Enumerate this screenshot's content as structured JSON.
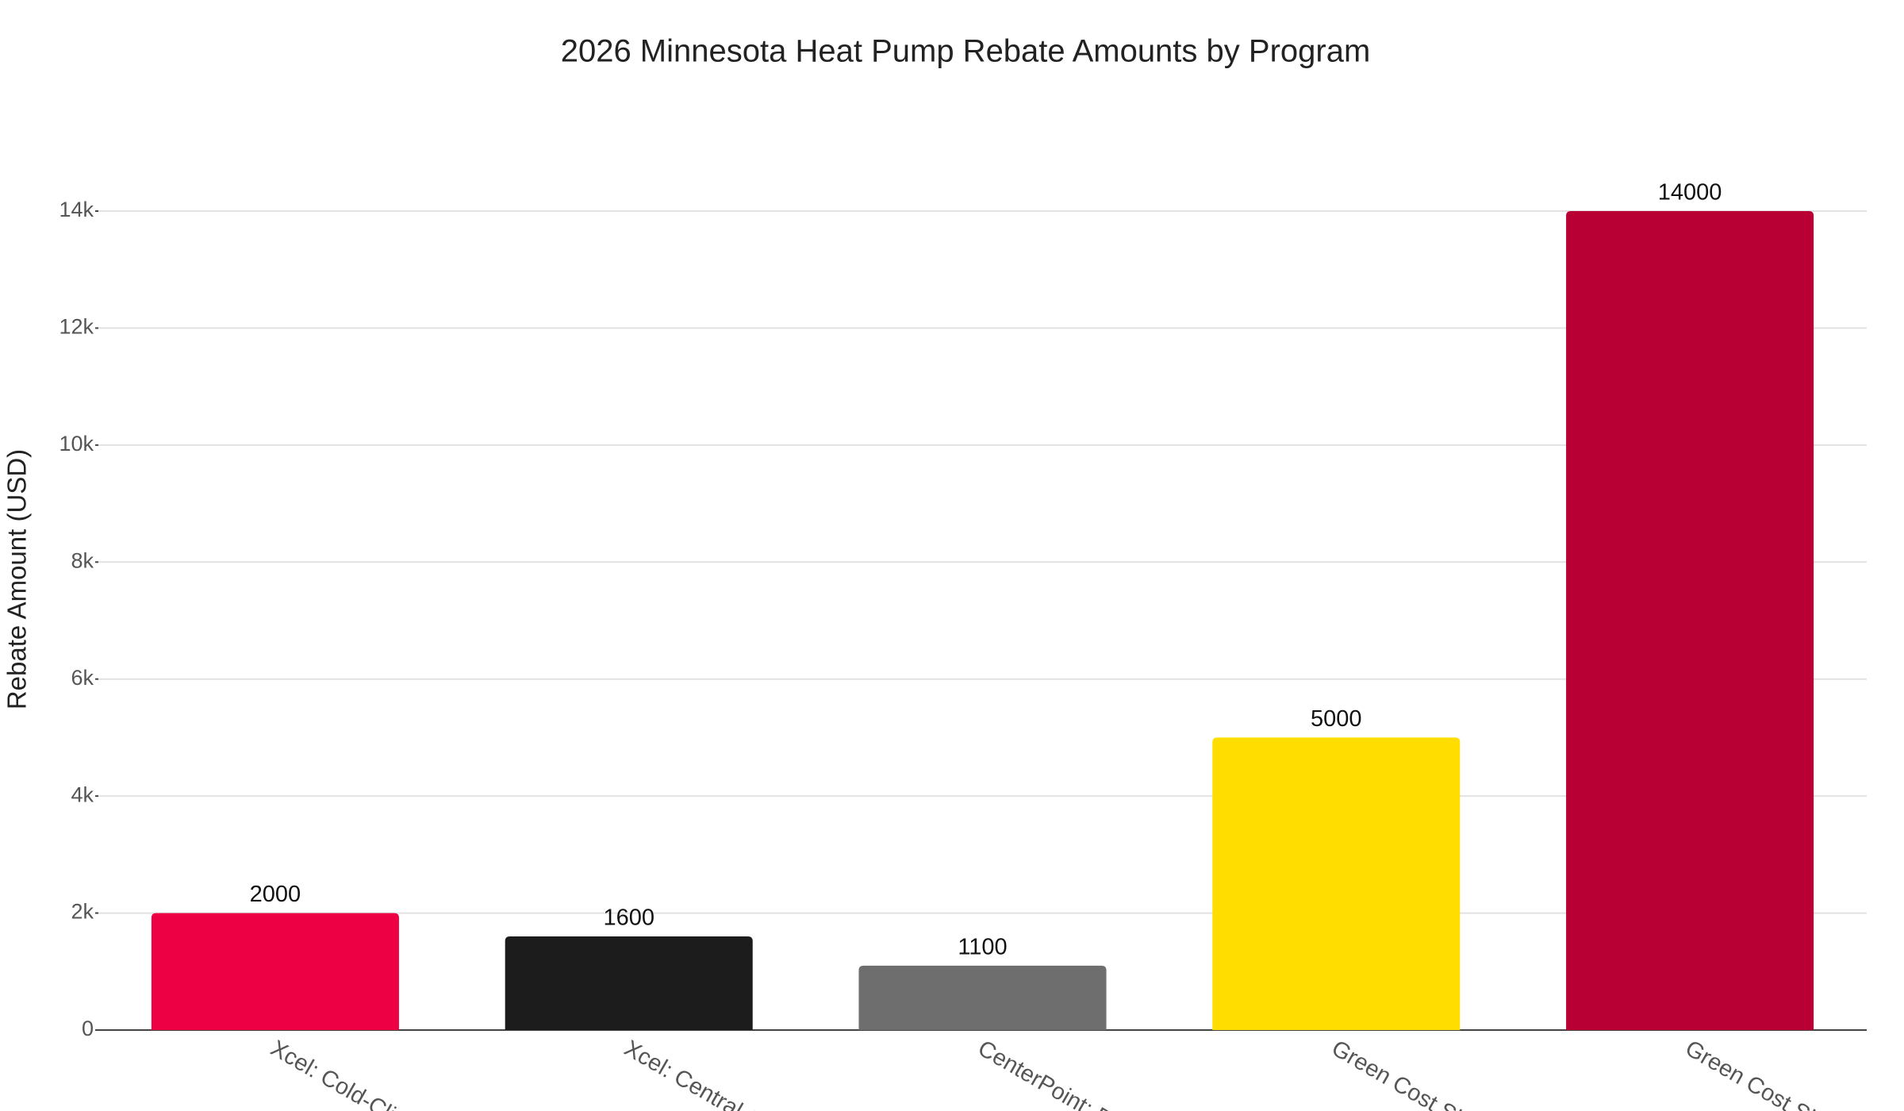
{
  "chart_data": {
    "type": "bar",
    "title": "2026 Minnesota Heat Pump Rebate Amounts by Program",
    "y_label": "Rebate Amount (USD)",
    "categories": [
      "Xcel: Cold-Clim",
      "Xcel: Central AS",
      "CenterPoint: D",
      "Green Cost Sha",
      "Green Cost Sha"
    ],
    "values": [
      2000,
      1600,
      1100,
      5000,
      14000
    ],
    "colors": [
      "#ee0044",
      "#1c1c1c",
      "#6e6e6e",
      "#ffdd00",
      "#b80035"
    ],
    "ylim": [
      0,
      14000
    ],
    "yticks": [
      0,
      {
        "value": 2000,
        "label": "2k"
      },
      {
        "value": 4000,
        "label": "4k"
      },
      {
        "value": 6000,
        "label": "6k"
      },
      {
        "value": 8000,
        "label": "8k"
      },
      {
        "value": 10000,
        "label": "10k"
      },
      {
        "value": 12000,
        "label": "12k"
      },
      {
        "value": 14000,
        "label": "14k"
      }
    ],
    "grid": true
  }
}
